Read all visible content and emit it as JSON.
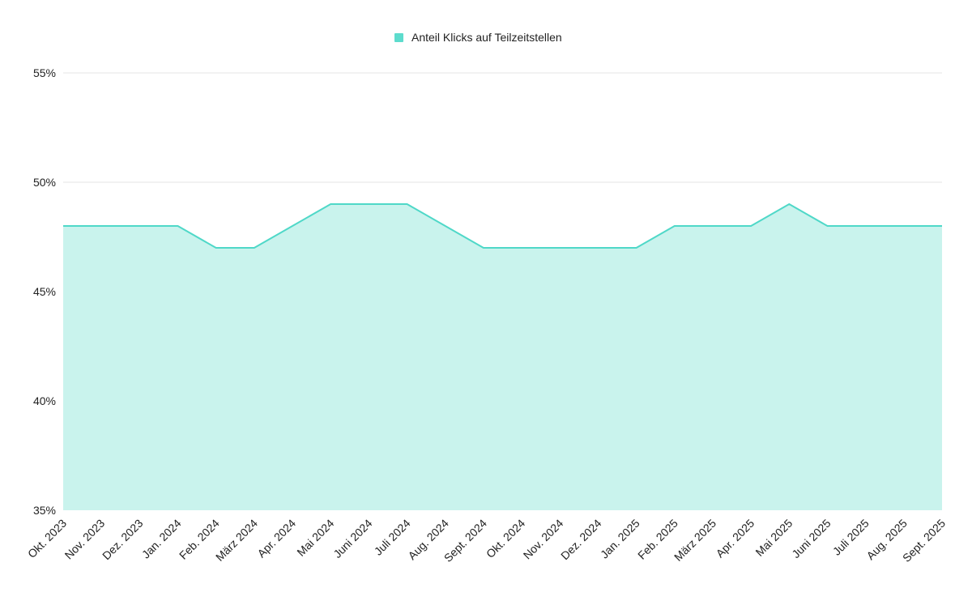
{
  "chart_data": {
    "type": "area",
    "x": [
      "Okt. 2023",
      "Nov. 2023",
      "Dez. 2023",
      "Jan. 2024",
      "Feb. 2024",
      "März 2024",
      "Apr. 2024",
      "Mai 2024",
      "Juni 2024",
      "Juli 2024",
      "Aug. 2024",
      "Sept. 2024",
      "Okt. 2024",
      "Nov. 2024",
      "Dez. 2024",
      "Jan. 2025",
      "Feb. 2025",
      "März 2025",
      "Apr. 2025",
      "Mai 2025",
      "Juni 2025",
      "Juli 2025",
      "Aug. 2025",
      "Sept. 2025"
    ],
    "series": [
      {
        "name": "Anteil Klicks auf Teilzeitstellen",
        "values": [
          48,
          48,
          48,
          48,
          47,
          47,
          48,
          49,
          49,
          49,
          48,
          47,
          47,
          47,
          47,
          47,
          48,
          48,
          48,
          49,
          48,
          48,
          48,
          48
        ],
        "line_color": "#4fd8c8",
        "fill_color": "#c9f3ed",
        "legend_color": "#5ddccd"
      }
    ],
    "ylim": [
      35,
      55
    ],
    "yticks": [
      35,
      40,
      45,
      50,
      55
    ],
    "ytick_format": "{v}%",
    "grid": true,
    "legend_position": "top-center",
    "title": "",
    "xlabel": "",
    "ylabel": ""
  }
}
